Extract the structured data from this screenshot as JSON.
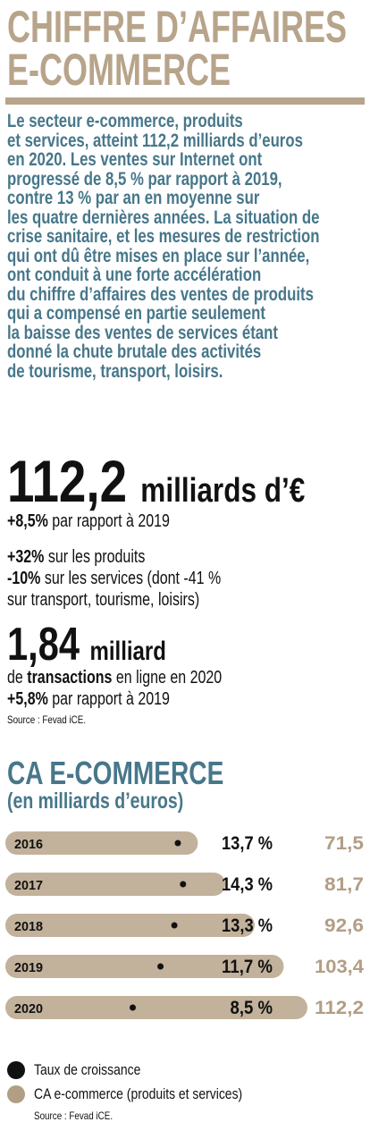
{
  "header": {
    "title_lines": [
      "CHIFFRE D’AFFAIRES",
      "E-COMMERCE"
    ]
  },
  "intro": {
    "lines": [
      "Le secteur e-commerce, produits",
      "et services, atteint 112,2 milliards d’euros",
      "en 2020. Les ventes sur Internet ont",
      "progressé de 8,5 % par rapport à 2019,",
      "contre 13 % par an en moyenne sur",
      "les quatre dernières années. La situation de",
      "crise sanitaire, et les mesures de restriction",
      "qui ont dû être mises en place sur l’année,",
      "ont conduit à une forte accélération",
      "du chiffre d’affaires des ventes de produits",
      "qui a compensé en partie seulement",
      "la baisse des ventes de services étant",
      "donné la chute brutale des activités",
      "de tourisme, transport, loisirs."
    ]
  },
  "stats": {
    "big1_value": "112,2",
    "big1_unit": "milliards d’€",
    "big1_change_value": "+8,5%",
    "big1_change_text": "par rapport à 2019",
    "products_value": "+32%",
    "products_text": "sur les produits",
    "services_value": "-10%",
    "services_text": "sur les services (dont -41 %",
    "services_text2": "sur transport, tourisme, loisirs)",
    "big2_value": "1,84",
    "big2_unit": "milliard",
    "tx_prefix": "de",
    "tx_bold": "transactions",
    "tx_suffix": "en ligne en 2020",
    "big2_change_value": "+5,8%",
    "big2_change_text": "par rapport à 2019",
    "source": "Source : Fevad iCE."
  },
  "chart_section": {
    "title": "CA E-COMMERCE",
    "subtitle": "(en milliards d’euros)"
  },
  "chart_data": {
    "type": "bar",
    "title": "CA E-COMMERCE",
    "subtitle": "(en milliards d’euros)",
    "categories": [
      "2016",
      "2017",
      "2018",
      "2019",
      "2020"
    ],
    "series": [
      {
        "name": "CA e-commerce (produits et services)",
        "values": [
          71.5,
          81.7,
          92.6,
          103.4,
          112.2
        ],
        "labels": [
          "71,5",
          "81,7",
          "92,6",
          "103,4",
          "112,2"
        ],
        "color": "#c2b19b"
      },
      {
        "name": "Taux de croissance",
        "values": [
          13.7,
          14.3,
          13.3,
          11.7,
          8.5
        ],
        "labels": [
          "13,7 %",
          "14,3 %",
          "13,3 %",
          "11,7 %",
          "8,5 %"
        ],
        "color": "#111111"
      }
    ],
    "xlim": [
      0,
      112.2
    ],
    "growth_range": [
      0,
      17
    ]
  },
  "legend": {
    "items": [
      {
        "label": "Taux de croissance",
        "color": "#111111"
      },
      {
        "label": "CA e-commerce (produits et services)",
        "color": "#b19e85"
      }
    ],
    "source": "Source : Fevad iCE."
  }
}
